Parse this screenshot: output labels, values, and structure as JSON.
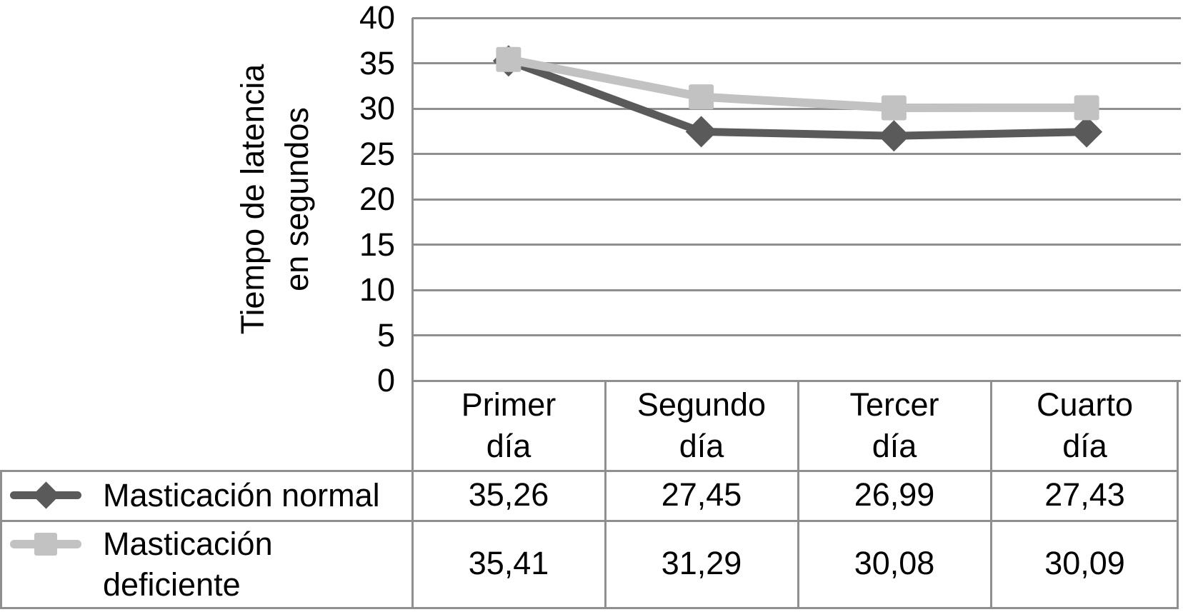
{
  "chart_data": {
    "type": "line",
    "title": "",
    "categories": [
      "Primer día",
      "Segundo día",
      "Tercer día",
      "Cuarto día"
    ],
    "series": [
      {
        "name": "Masticación normal",
        "values": [
          35.26,
          27.45,
          26.99,
          27.43
        ],
        "color": "#5a5a5a",
        "marker": "diamond"
      },
      {
        "name": "Masticación deficiente",
        "values": [
          35.41,
          31.29,
          30.08,
          30.09
        ],
        "color": "#c2c2c2",
        "marker": "square"
      }
    ],
    "xlabel": "",
    "ylabel": "Tiempo de latencia\nen segundos",
    "ylim": [
      0,
      40
    ],
    "yticks": [
      40,
      35,
      30,
      25,
      20,
      15,
      10,
      5,
      0
    ],
    "grid": true,
    "gridline_color": "#8f8f8f",
    "axis_color": "#8f8f8f",
    "legend_position": "table-left",
    "background": "#ffffff"
  },
  "table": {
    "headers": [
      "Primer\ndía",
      "Segundo\ndía",
      "Tercer\ndía",
      "Cuarto\ndía"
    ],
    "rows": [
      {
        "label": "Masticación normal",
        "values": [
          "35,26",
          "27,45",
          "26,99",
          "27,43"
        ]
      },
      {
        "label": "Masticación deficiente",
        "values": [
          "35,41",
          "31,29",
          "30,08",
          "30,09"
        ]
      }
    ]
  }
}
